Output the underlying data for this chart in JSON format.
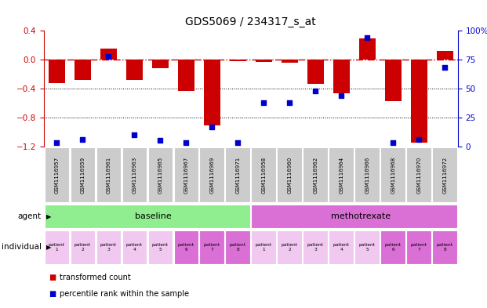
{
  "title": "GDS5069 / 234317_s_at",
  "samples": [
    "GSM1116957",
    "GSM1116959",
    "GSM1116961",
    "GSM1116963",
    "GSM1116965",
    "GSM1116967",
    "GSM1116969",
    "GSM1116971",
    "GSM1116958",
    "GSM1116960",
    "GSM1116962",
    "GSM1116964",
    "GSM1116966",
    "GSM1116968",
    "GSM1116970",
    "GSM1116972"
  ],
  "transformed_count": [
    -0.32,
    -0.28,
    0.15,
    -0.28,
    -0.12,
    -0.43,
    -0.91,
    -0.02,
    -0.03,
    -0.04,
    -0.34,
    -0.47,
    0.3,
    -0.57,
    -1.15,
    0.12
  ],
  "percentile_rank": [
    3,
    6,
    78,
    10,
    5,
    3,
    17,
    3,
    38,
    38,
    48,
    44,
    94,
    3,
    6,
    68
  ],
  "bar_color": "#cc0000",
  "dot_color": "#0000cc",
  "ylim_left": [
    -1.2,
    0.4
  ],
  "ylim_right": [
    0,
    100
  ],
  "yticks_left": [
    0.4,
    0.0,
    -0.4,
    -0.8,
    -1.2
  ],
  "yticks_right": [
    100,
    75,
    50,
    25,
    0
  ],
  "dotted_lines": [
    -0.4,
    -0.8
  ],
  "agent_labels": [
    "baseline",
    "methotrexate"
  ],
  "agent_colors": [
    "#90ee90",
    "#da70d6"
  ],
  "individual_colors": [
    "#f0c8f0",
    "#f0c8f0",
    "#f0c8f0",
    "#f0c8f0",
    "#f0c8f0",
    "#da70d6",
    "#da70d6",
    "#da70d6",
    "#f0c8f0",
    "#f0c8f0",
    "#f0c8f0",
    "#f0c8f0",
    "#f0c8f0",
    "#da70d6",
    "#da70d6",
    "#da70d6"
  ],
  "individual_labels": [
    "patient\n1",
    "patient\n2",
    "patient\n3",
    "patient\n4",
    "patient\n5",
    "patient\n6",
    "patient\n7",
    "patient\n8",
    "patient\n1",
    "patient\n2",
    "patient\n3",
    "patient\n4",
    "patient\n5",
    "patient\n6",
    "patient\n7",
    "patient\n8"
  ],
  "row_label_agent": "agent",
  "row_label_individual": "individual",
  "legend_bar_label": "transformed count",
  "legend_dot_label": "percentile rank within the sample",
  "background_color": "#ffffff",
  "sample_bg_color": "#cccccc",
  "bar_width": 0.65,
  "dot_size": 25,
  "title_fontsize": 10
}
